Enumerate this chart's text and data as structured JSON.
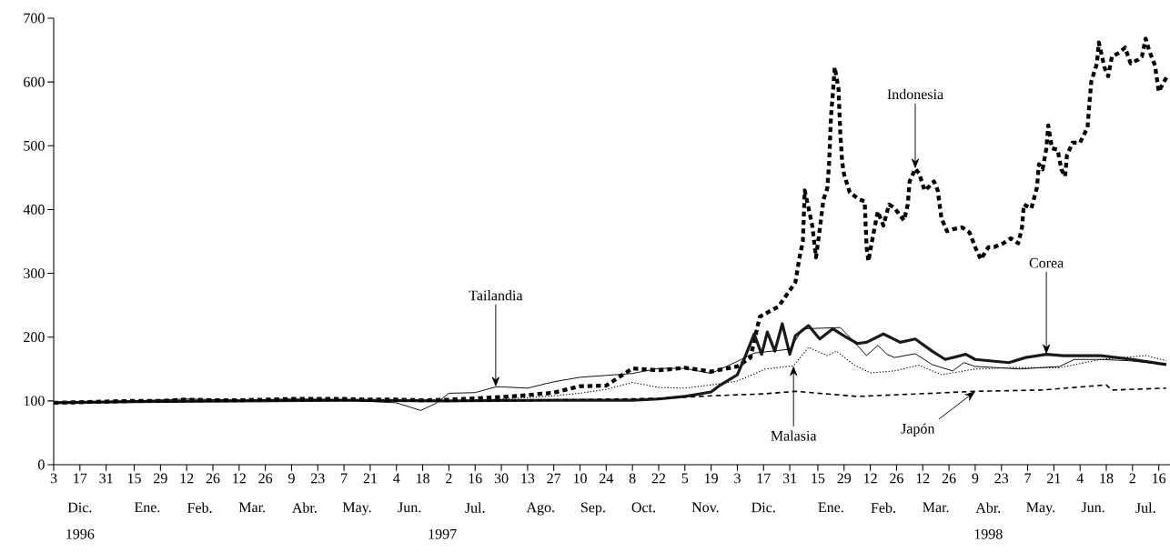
{
  "chart_data": {
    "type": "line",
    "xlim": [
      "1996-12-03",
      "1998-07-22"
    ],
    "ylim": [
      0,
      700
    ],
    "yticks": [
      0,
      100,
      200,
      300,
      400,
      500,
      600,
      700
    ],
    "xticks": [
      {
        "value": "1996-12-03",
        "label": "3"
      },
      {
        "value": "1996-12-17",
        "label": "17"
      },
      {
        "value": "1996-12-31",
        "label": "31"
      },
      {
        "value": "1997-01-15",
        "label": "15"
      },
      {
        "value": "1997-01-29",
        "label": "29"
      },
      {
        "value": "1997-02-12",
        "label": "12"
      },
      {
        "value": "1997-02-26",
        "label": "26"
      },
      {
        "value": "1997-03-12",
        "label": "12"
      },
      {
        "value": "1997-03-26",
        "label": "26"
      },
      {
        "value": "1997-04-09",
        "label": "9"
      },
      {
        "value": "1997-04-23",
        "label": "23"
      },
      {
        "value": "1997-05-07",
        "label": "7"
      },
      {
        "value": "1997-05-21",
        "label": "21"
      },
      {
        "value": "1997-06-04",
        "label": "4"
      },
      {
        "value": "1997-06-18",
        "label": "18"
      },
      {
        "value": "1997-07-02",
        "label": "2"
      },
      {
        "value": "1997-07-16",
        "label": "16"
      },
      {
        "value": "1997-07-30",
        "label": "30"
      },
      {
        "value": "1997-08-13",
        "label": "13"
      },
      {
        "value": "1997-08-27",
        "label": "27"
      },
      {
        "value": "1997-09-10",
        "label": "10"
      },
      {
        "value": "1997-09-24",
        "label": "24"
      },
      {
        "value": "1997-10-08",
        "label": "8"
      },
      {
        "value": "1997-10-22",
        "label": "22"
      },
      {
        "value": "1997-11-05",
        "label": "5"
      },
      {
        "value": "1997-11-19",
        "label": "19"
      },
      {
        "value": "1997-12-03",
        "label": "3"
      },
      {
        "value": "1997-12-17",
        "label": "17"
      },
      {
        "value": "1997-12-31",
        "label": "31"
      },
      {
        "value": "1998-01-15",
        "label": "15"
      },
      {
        "value": "1998-01-29",
        "label": "29"
      },
      {
        "value": "1998-02-12",
        "label": "12"
      },
      {
        "value": "1998-02-26",
        "label": "26"
      },
      {
        "value": "1998-03-12",
        "label": "12"
      },
      {
        "value": "1998-03-26",
        "label": "26"
      },
      {
        "value": "1998-04-09",
        "label": "9"
      },
      {
        "value": "1998-04-23",
        "label": "23"
      },
      {
        "value": "1998-05-07",
        "label": "7"
      },
      {
        "value": "1998-05-21",
        "label": "21"
      },
      {
        "value": "1998-06-04",
        "label": "4"
      },
      {
        "value": "1998-06-18",
        "label": "18"
      },
      {
        "value": "1998-07-02",
        "label": "2"
      },
      {
        "value": "1998-07-16",
        "label": "16"
      }
    ],
    "x2lim": [
      "1996-12-03",
      "1998-07-22"
    ],
    "x2ticks": [
      {
        "value": "1996-12-17",
        "label": "Dic."
      },
      {
        "value": "1997-01-22",
        "label": "Ene."
      },
      {
        "value": "1997-02-19",
        "label": "Feb."
      },
      {
        "value": "1997-03-19",
        "label": "Mar."
      },
      {
        "value": "1997-04-16",
        "label": "Abr."
      },
      {
        "value": "1997-05-14",
        "label": "May."
      },
      {
        "value": "1997-06-11",
        "label": "Jun."
      },
      {
        "value": "1997-07-16",
        "label": "Jul."
      },
      {
        "value": "1997-08-20",
        "label": "Ago."
      },
      {
        "value": "1997-09-17",
        "label": "Sep."
      },
      {
        "value": "1997-10-14",
        "label": "Oct."
      },
      {
        "value": "1997-11-16",
        "label": "Nov."
      },
      {
        "value": "1997-12-17",
        "label": "Dic."
      },
      {
        "value": "1998-01-22",
        "label": "Ene."
      },
      {
        "value": "1998-02-19",
        "label": "Feb."
      },
      {
        "value": "1998-03-19",
        "label": "Mar."
      },
      {
        "value": "1998-04-16",
        "label": "Abr."
      },
      {
        "value": "1998-05-14",
        "label": "May."
      },
      {
        "value": "1998-06-11",
        "label": "Jun."
      },
      {
        "value": "1998-07-09",
        "label": "Jul."
      }
    ],
    "series": [
      {
        "color": "#000000",
        "line_style": "dashed",
        "x": [
          "1996-12-03",
          "1996-12-17",
          "1996-12-31",
          "1997-01-15",
          "1997-01-29",
          "1997-02-12",
          "1997-02-26",
          "1997-03-12",
          "1997-03-26",
          "1997-04-09",
          "1997-04-23",
          "1997-05-07",
          "1997-05-21",
          "1997-06-04",
          "1997-06-18",
          "1997-07-02",
          "1997-07-16",
          "1997-07-30",
          "1997-08-13",
          "1997-08-27",
          "1997-09-10",
          "1997-09-24",
          "1997-10-08",
          "1997-10-22",
          "1997-11-05",
          "1997-11-19",
          "1997-12-03",
          "1997-12-10",
          "1997-12-15",
          "1997-12-25",
          "1998-01-03",
          "1998-01-05",
          "1998-01-07",
          "1998-01-08",
          "1998-01-12",
          "1998-01-14",
          "1998-01-16",
          "1998-01-18",
          "1998-01-20",
          "1998-01-21",
          "1998-01-22",
          "1998-01-23",
          "1998-01-24",
          "1998-01-26",
          "1998-01-27",
          "1998-01-28",
          "1998-01-29",
          "1998-02-01",
          "1998-02-06",
          "1998-02-09",
          "1998-02-10",
          "1998-02-11",
          "1998-02-13",
          "1998-02-16",
          "1998-02-19",
          "1998-02-22",
          "1998-02-25",
          "1998-03-02",
          "1998-03-04",
          "1998-03-05",
          "1998-03-08",
          "1998-03-10",
          "1998-03-13",
          "1998-03-15",
          "1998-03-18",
          "1998-03-20",
          "1998-03-22",
          "1998-03-25",
          "1998-03-28",
          "1998-04-02",
          "1998-04-06",
          "1998-04-09",
          "1998-04-12",
          "1998-04-16",
          "1998-04-19",
          "1998-04-24",
          "1998-04-28",
          "1998-05-02",
          "1998-05-04",
          "1998-05-05",
          "1998-05-09",
          "1998-05-12",
          "1998-05-13",
          "1998-05-15",
          "1998-05-17",
          "1998-05-18",
          "1998-05-20",
          "1998-05-23",
          "1998-05-25",
          "1998-05-27",
          "1998-05-28",
          "1998-05-31",
          "1998-06-04",
          "1998-06-08",
          "1998-06-09",
          "1998-06-10",
          "1998-06-13",
          "1998-06-14",
          "1998-06-17",
          "1998-06-19",
          "1998-06-21",
          "1998-06-25",
          "1998-06-28",
          "1998-07-01",
          "1998-07-05",
          "1998-07-07",
          "1998-07-09",
          "1998-07-11",
          "1998-07-14",
          "1998-07-16",
          "1998-07-18",
          "1998-07-21"
        ],
        "values": [
          97,
          98,
          99,
          100,
          100,
          102,
          101,
          101,
          102,
          103,
          103,
          103,
          102,
          102,
          101,
          102,
          104,
          106,
          109,
          113,
          123,
          124,
          151,
          148,
          152,
          146,
          154,
          168,
          232,
          248,
          286,
          322,
          350,
          430,
          375,
          325,
          369,
          416,
          433,
          471,
          546,
          582,
          623,
          590,
          518,
          474,
          455,
          427,
          416,
          413,
          341,
          319,
          352,
          397,
          375,
          408,
          402,
          383,
          408,
          444,
          464,
          457,
          430,
          435,
          444,
          430,
          386,
          366,
          369,
          372,
          364,
          341,
          322,
          341,
          341,
          347,
          355,
          347,
          372,
          408,
          402,
          435,
          471,
          463,
          496,
          532,
          496,
          494,
          463,
          452,
          485,
          505,
          505,
          529,
          568,
          601,
          629,
          662,
          623,
          609,
          640,
          646,
          654,
          629,
          635,
          640,
          668,
          648,
          626,
          585,
          596,
          612
        ]
      },
      {
        "color": "#1a1a1a",
        "line_style": "solid",
        "x": [
          "1996-12-03",
          "1997-01-15",
          "1997-03-12",
          "1997-05-07",
          "1997-07-02",
          "1997-08-27",
          "1997-10-08",
          "1997-10-22",
          "1997-11-05",
          "1997-11-19",
          "1997-11-23",
          "1997-12-03",
          "1997-12-07",
          "1997-12-12",
          "1997-12-16",
          "1997-12-19",
          "1997-12-23",
          "1997-12-27",
          "1997-12-31",
          "1998-01-03",
          "1998-01-10",
          "1998-01-16",
          "1998-01-23",
          "1998-01-29",
          "1998-02-05",
          "1998-02-10",
          "1998-02-19",
          "1998-02-28",
          "1998-03-08",
          "1998-03-17",
          "1998-03-24",
          "1998-04-04",
          "1998-04-09",
          "1998-04-27",
          "1998-05-06",
          "1998-05-17",
          "1998-05-26",
          "1998-06-15",
          "1998-07-02",
          "1998-07-20"
        ],
        "values": [
          97,
          99,
          100,
          101,
          100,
          101,
          101,
          103,
          107,
          114,
          123,
          141,
          168,
          205,
          173,
          208,
          178,
          221,
          173,
          202,
          218,
          197,
          213,
          202,
          190,
          192,
          205,
          192,
          197,
          178,
          165,
          173,
          165,
          160,
          168,
          173,
          171,
          171,
          165,
          157
        ]
      },
      {
        "color": "#000000",
        "line_style": "solid",
        "x": [
          "1996-12-03",
          "1997-01-15",
          "1997-02-12",
          "1997-03-12",
          "1997-04-09",
          "1997-05-07",
          "1997-05-21",
          "1997-06-04",
          "1997-06-17",
          "1997-06-25",
          "1997-07-02",
          "1997-07-16",
          "1997-07-27",
          "1997-07-30",
          "1997-08-13",
          "1997-08-27",
          "1997-09-10",
          "1997-09-24",
          "1997-10-08",
          "1997-10-22",
          "1997-11-05",
          "1997-11-19",
          "1997-12-03",
          "1997-12-12",
          "1997-12-31",
          "1998-01-07",
          "1998-01-27",
          "1998-02-01",
          "1998-02-10",
          "1998-02-16",
          "1998-02-21",
          "1998-02-25",
          "1998-03-08",
          "1998-03-17",
          "1998-03-28",
          "1998-04-03",
          "1998-04-09",
          "1998-05-03",
          "1998-05-24",
          "1998-06-01",
          "1998-06-15",
          "1998-06-30",
          "1998-07-20"
        ],
        "values": [
          97,
          100,
          103,
          101,
          103,
          102,
          99,
          97,
          85,
          96,
          112,
          113,
          122,
          122,
          120,
          130,
          137,
          140,
          143,
          151,
          151,
          143,
          162,
          175,
          181,
          213,
          215,
          200,
          171,
          187,
          173,
          168,
          174,
          157,
          147,
          160,
          154,
          150,
          154,
          165,
          165,
          163,
          157
        ]
      },
      {
        "color": "#000000",
        "line_style": "dotted",
        "x": [
          "1996-12-03",
          "1997-01-15",
          "1997-03-12",
          "1997-05-07",
          "1997-07-02",
          "1997-07-30",
          "1997-08-13",
          "1997-08-27",
          "1997-09-10",
          "1997-09-24",
          "1997-10-08",
          "1997-10-22",
          "1997-11-05",
          "1997-11-19",
          "1997-12-03",
          "1997-12-18",
          "1998-01-02",
          "1998-01-10",
          "1998-01-20",
          "1998-01-25",
          "1998-02-03",
          "1998-02-12",
          "1998-02-25",
          "1998-03-10",
          "1998-03-22",
          "1998-04-09",
          "1998-04-27",
          "1998-05-24",
          "1998-06-15",
          "1998-07-09",
          "1998-07-20"
        ],
        "values": [
          97,
          99,
          100,
          101,
          100,
          103,
          105,
          108,
          112,
          118,
          129,
          121,
          120,
          125,
          131,
          150,
          155,
          184,
          171,
          178,
          157,
          144,
          147,
          156,
          141,
          150,
          152,
          152,
          165,
          171,
          163
        ]
      },
      {
        "color": "#000000",
        "line_style": "dashed",
        "x": [
          "1996-12-03",
          "1997-02-12",
          "1997-04-09",
          "1997-06-04",
          "1997-07-16",
          "1997-09-10",
          "1997-10-22",
          "1997-11-19",
          "1997-12-17",
          "1998-01-03",
          "1998-02-05",
          "1998-03-17",
          "1998-04-09",
          "1998-05-14",
          "1998-06-18",
          "1998-06-21",
          "1998-07-20"
        ],
        "values": [
          97,
          99,
          101,
          100,
          100,
          102,
          104,
          108,
          111,
          115,
          107,
          112,
          115,
          117,
          125,
          117,
          120
        ]
      }
    ],
    "annotations": [
      {
        "text": "Tailandia",
        "x": "1997-07-27",
        "y": 122
      },
      {
        "text": "Indonesia",
        "x": "1998-03-08",
        "y": 464
      },
      {
        "text": "Corea",
        "x": "1998-05-17",
        "y": 173
      },
      {
        "text": "Malasia",
        "x": "1998-01-02",
        "y": 155
      },
      {
        "text": "Japón",
        "x": "1998-04-09",
        "y": 115
      },
      "1996",
      "1997",
      "1998"
    ]
  }
}
